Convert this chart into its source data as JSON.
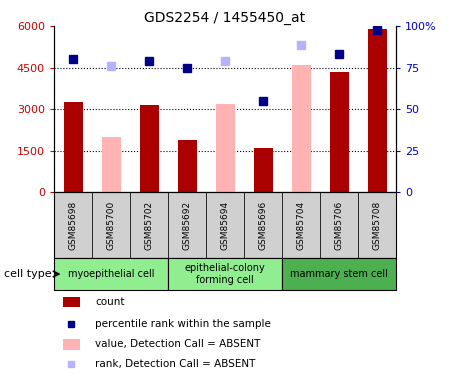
{
  "title": "GDS2254 / 1455450_at",
  "samples": [
    "GSM85698",
    "GSM85700",
    "GSM85702",
    "GSM85692",
    "GSM85694",
    "GSM85696",
    "GSM85704",
    "GSM85706",
    "GSM85708"
  ],
  "count_values": [
    3250,
    null,
    3150,
    1900,
    null,
    1600,
    null,
    4350,
    5900
  ],
  "absent_value_bars": [
    null,
    2000,
    null,
    null,
    3200,
    null,
    4600,
    null,
    null
  ],
  "rank_present": [
    80,
    null,
    79,
    75,
    null,
    55,
    null,
    83,
    98
  ],
  "rank_absent": [
    null,
    76,
    null,
    null,
    79,
    null,
    89,
    null,
    null
  ],
  "cell_types": [
    {
      "label": "myoepithelial cell",
      "start": 0,
      "end": 3,
      "color": "#90ee90"
    },
    {
      "label": "epithelial-colony\nforming cell",
      "start": 3,
      "end": 6,
      "color": "#90ee90"
    },
    {
      "label": "mammary stem cell",
      "start": 6,
      "end": 9,
      "color": "#4caf50"
    }
  ],
  "ylim_left": [
    0,
    6000
  ],
  "ylim_right": [
    0,
    100
  ],
  "yticks_left": [
    0,
    1500,
    3000,
    4500,
    6000
  ],
  "ytick_labels_left": [
    "0",
    "1500",
    "3000",
    "4500",
    "6000"
  ],
  "yticks_right": [
    0,
    25,
    50,
    75,
    100
  ],
  "ytick_labels_right": [
    "0",
    "25",
    "50",
    "75",
    "100%"
  ],
  "bar_color_present": "#aa0000",
  "bar_color_absent": "#ffb3b3",
  "marker_color_present": "#00008b",
  "marker_color_absent": "#b3b3ff",
  "legend_items": [
    {
      "label": "count",
      "color": "#aa0000",
      "type": "bar"
    },
    {
      "label": "percentile rank within the sample",
      "color": "#00008b",
      "type": "marker"
    },
    {
      "label": "value, Detection Call = ABSENT",
      "color": "#ffb3b3",
      "type": "bar"
    },
    {
      "label": "rank, Detection Call = ABSENT",
      "color": "#b3b3ff",
      "type": "marker"
    }
  ],
  "cell_type_label": "cell type",
  "sample_box_color": "#d0d0d0",
  "myoepithelial_color": "#aaffaa",
  "epithelial_color": "#aaffaa",
  "mammary_color": "#44cc44"
}
